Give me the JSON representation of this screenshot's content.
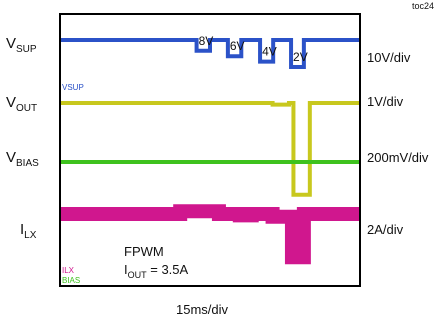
{
  "figure_id": "toc24",
  "chart_data": {
    "type": "line",
    "title": "",
    "time_scale": "15ms/div",
    "channels": [
      {
        "key": "vsup",
        "label_main": "V",
        "label_sub": "SUP",
        "scale": "10V/div",
        "small_label": "VSUP",
        "color": "#2b52c8",
        "steps": [
          {
            "t": 0.0,
            "level": 0.0
          },
          {
            "t": 4.55,
            "level": -0.4
          },
          {
            "t": 5.0,
            "level": 0.0
          },
          {
            "t": 5.6,
            "level": -0.6
          },
          {
            "t": 6.05,
            "level": 0.0
          },
          {
            "t": 6.68,
            "level": -0.8
          },
          {
            "t": 7.12,
            "level": 0.0
          },
          {
            "t": 7.72,
            "level": -1.0
          },
          {
            "t": 8.15,
            "level": 0.0
          },
          {
            "t": 10.0,
            "level": 0.0
          }
        ],
        "step_labels": [
          "8V",
          "6V",
          "4V",
          "2V"
        ]
      },
      {
        "key": "vout",
        "label_main": "V",
        "label_sub": "OUT",
        "scale": "1V/div",
        "color": "#c8c81e",
        "steps": [
          {
            "t": 0.0,
            "level": 0.0
          },
          {
            "t": 7.1,
            "level": -0.06
          },
          {
            "t": 7.65,
            "level": 0.0
          },
          {
            "t": 7.8,
            "level": -3.4
          },
          {
            "t": 8.05,
            "level": -3.4
          },
          {
            "t": 8.35,
            "level": 0.0
          },
          {
            "t": 10.0,
            "level": 0.0
          }
        ]
      },
      {
        "key": "vbias",
        "label_main": "V",
        "label_sub": "BIAS",
        "scale": "200mV/div",
        "small_label": "BIAS",
        "color": "#3ec21e",
        "steps": [
          {
            "t": 0.0,
            "level": 0.0
          },
          {
            "t": 10.0,
            "level": 0.0
          }
        ]
      },
      {
        "key": "ilx",
        "label_main": "I",
        "label_sub": "LX",
        "scale": "2A/div",
        "small_label": "ILX",
        "color": "#d0178e",
        "steps": [
          {
            "t": 0.0,
            "level": 0.0
          },
          {
            "t": 4.0,
            "level": 0.1
          },
          {
            "t": 5.3,
            "level": 0.0
          },
          {
            "t": 6.0,
            "level": -0.05
          },
          {
            "t": 6.4,
            "level": 0.0
          },
          {
            "t": 7.1,
            "level": -0.1
          },
          {
            "t": 7.75,
            "level": -1.6
          },
          {
            "t": 8.15,
            "level": 0.0
          },
          {
            "t": 10.0,
            "level": 0.0
          }
        ]
      }
    ],
    "annotations": {
      "mode": "FPWM",
      "iout_main": "I",
      "iout_sub": "OUT",
      "iout_value": " = 3.5A"
    }
  }
}
